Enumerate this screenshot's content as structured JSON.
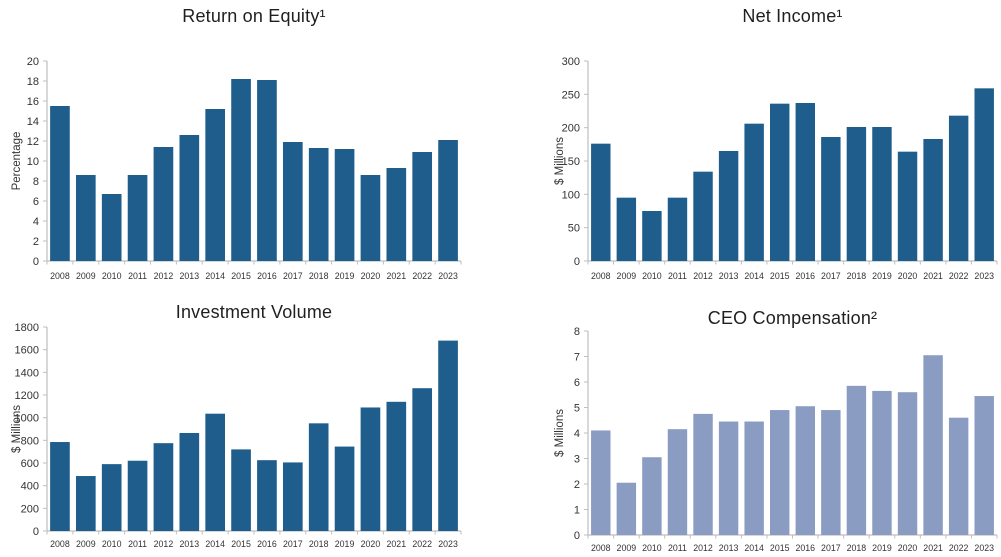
{
  "colors": {
    "background": "#ffffff",
    "bar_dark": "#1f5e8c",
    "bar_light": "#8b9cc3",
    "axis_line": "#bfbfbf",
    "tick_text": "#333333",
    "title_text": "#1f1f1f"
  },
  "chart_data": [
    {
      "type": "bar",
      "title": "Return on Equity¹",
      "ylabel": "Percentage",
      "xlabel": "",
      "categories": [
        "2008",
        "2009",
        "2010",
        "2011",
        "2012",
        "2013",
        "2014",
        "2015",
        "2016",
        "2017",
        "2018",
        "2019",
        "2020",
        "2021",
        "2022",
        "2023"
      ],
      "values": [
        15.5,
        8.6,
        6.7,
        8.6,
        11.4,
        12.6,
        15.2,
        18.2,
        18.1,
        11.9,
        11.3,
        11.2,
        8.6,
        9.3,
        10.9,
        12.1
      ],
      "ylim": [
        0,
        20
      ],
      "ytick_step": 2,
      "bar_color": "#1f5e8c",
      "grid": false,
      "legend": "none"
    },
    {
      "type": "bar",
      "title": "Net Income¹",
      "ylabel": "$ Millions",
      "xlabel": "",
      "categories": [
        "2008",
        "2009",
        "2010",
        "2011",
        "2012",
        "2013",
        "2014",
        "2015",
        "2016",
        "2017",
        "2018",
        "2019",
        "2020",
        "2021",
        "2022",
        "2023"
      ],
      "values": [
        176,
        95,
        75,
        95,
        134,
        165,
        206,
        236,
        237,
        186,
        201,
        201,
        164,
        183,
        218,
        259
      ],
      "ylim": [
        0,
        300
      ],
      "ytick_step": 50,
      "bar_color": "#1f5e8c",
      "grid": false,
      "legend": "none"
    },
    {
      "type": "bar",
      "title": "Investment Volume",
      "ylabel": "$ Millions",
      "xlabel": "",
      "categories": [
        "2008",
        "2009",
        "2010",
        "2011",
        "2012",
        "2013",
        "2014",
        "2015",
        "2016",
        "2017",
        "2018",
        "2019",
        "2020",
        "2021",
        "2022",
        "2023"
      ],
      "values": [
        785,
        485,
        590,
        620,
        775,
        865,
        1035,
        720,
        625,
        605,
        950,
        745,
        1090,
        1140,
        1260,
        1680
      ],
      "ylim": [
        0,
        1800
      ],
      "ytick_step": 200,
      "bar_color": "#1f5e8c",
      "grid": false,
      "legend": "none"
    },
    {
      "type": "bar",
      "title": "CEO Compensation²",
      "ylabel": "$ Millions",
      "xlabel": "",
      "categories": [
        "2008",
        "2009",
        "2010",
        "2011",
        "2012",
        "2013",
        "2014",
        "2015",
        "2016",
        "2017",
        "2018",
        "2019",
        "2020",
        "2021",
        "2022",
        "2023"
      ],
      "values": [
        4.1,
        2.05,
        3.05,
        4.15,
        4.75,
        4.45,
        4.45,
        4.9,
        5.05,
        4.9,
        5.85,
        5.65,
        5.6,
        7.05,
        4.6,
        5.45
      ],
      "ylim": [
        0,
        8
      ],
      "ytick_step": 1,
      "bar_color": "#8b9cc3",
      "grid": false,
      "legend": "none"
    }
  ]
}
